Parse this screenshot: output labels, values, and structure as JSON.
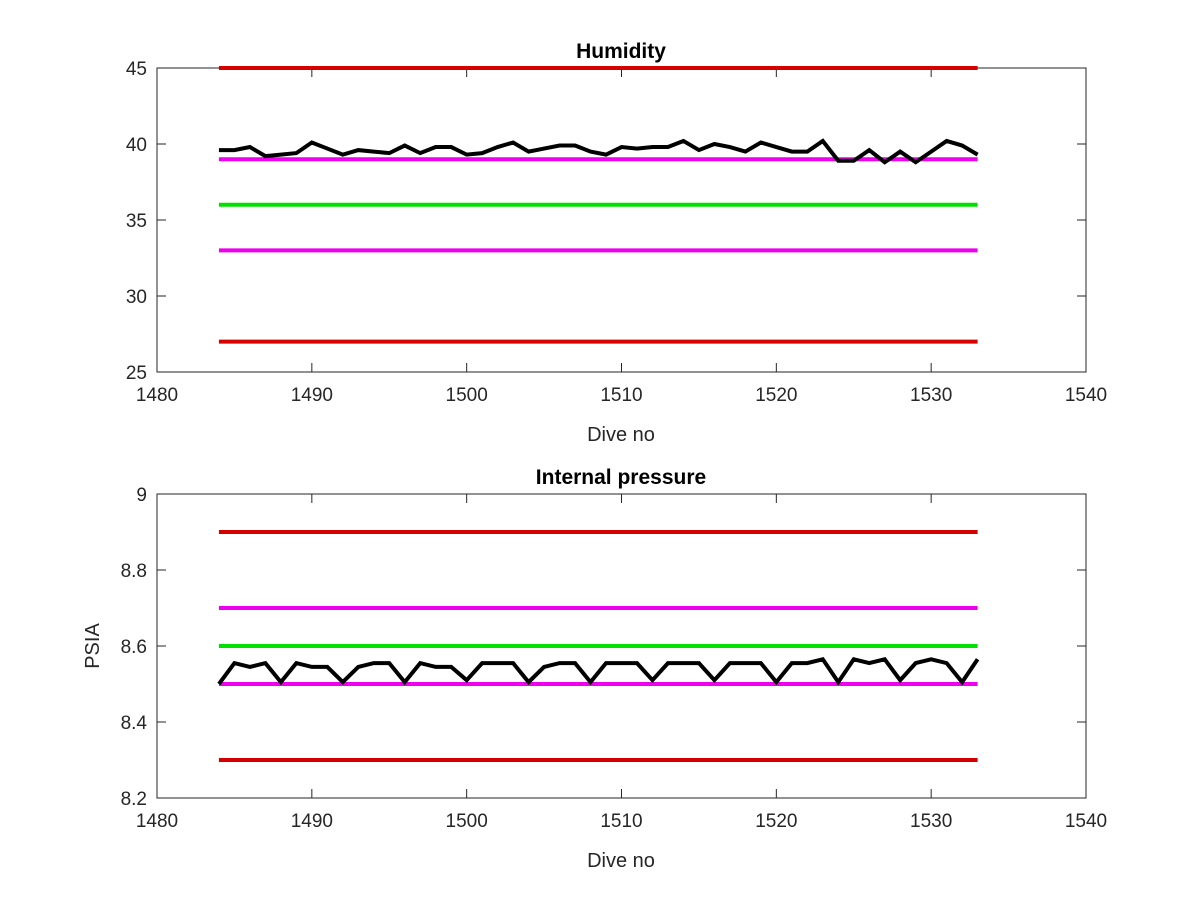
{
  "chart_data": [
    {
      "type": "line",
      "title": "Humidity",
      "xlabel": "Dive no",
      "ylabel": "",
      "xlim": [
        1480,
        1540
      ],
      "ylim": [
        25,
        45
      ],
      "xticks": [
        1480,
        1490,
        1500,
        1510,
        1520,
        1530,
        1540
      ],
      "yticks": [
        25,
        30,
        35,
        40,
        45
      ],
      "grid": false,
      "series": [
        {
          "color": "#d40000",
          "x": [
            1484,
            1533
          ],
          "values": [
            45,
            45
          ]
        },
        {
          "color": "#ee00ee",
          "x": [
            1484,
            1533
          ],
          "values": [
            39,
            39
          ]
        },
        {
          "color": "#00e000",
          "x": [
            1484,
            1533
          ],
          "values": [
            36,
            36
          ]
        },
        {
          "color": "#ee00ee",
          "x": [
            1484,
            1533
          ],
          "values": [
            33,
            33
          ]
        },
        {
          "color": "#d40000",
          "x": [
            1484,
            1533
          ],
          "values": [
            27,
            27
          ]
        },
        {
          "color": "#000000",
          "x": [
            1484,
            1485,
            1486,
            1487,
            1488,
            1489,
            1490,
            1491,
            1492,
            1493,
            1494,
            1495,
            1496,
            1497,
            1498,
            1499,
            1500,
            1501,
            1502,
            1503,
            1504,
            1505,
            1506,
            1507,
            1508,
            1509,
            1510,
            1511,
            1512,
            1513,
            1514,
            1515,
            1516,
            1517,
            1518,
            1519,
            1520,
            1521,
            1522,
            1523,
            1524,
            1525,
            1526,
            1527,
            1528,
            1529,
            1530,
            1531,
            1532,
            1533
          ],
          "values": [
            39.6,
            39.6,
            39.8,
            39.2,
            39.3,
            39.4,
            40.1,
            39.7,
            39.3,
            39.6,
            39.5,
            39.4,
            39.9,
            39.4,
            39.8,
            39.8,
            39.3,
            39.4,
            39.8,
            40.1,
            39.5,
            39.7,
            39.9,
            39.9,
            39.5,
            39.3,
            39.8,
            39.7,
            39.8,
            39.8,
            40.2,
            39.6,
            40.0,
            39.8,
            39.5,
            40.1,
            39.8,
            39.5,
            39.5,
            40.2,
            38.9,
            38.9,
            39.6,
            38.8,
            39.5,
            38.8,
            39.5,
            40.2,
            39.9,
            39.3
          ]
        }
      ]
    },
    {
      "type": "line",
      "title": "Internal pressure",
      "xlabel": "Dive no",
      "ylabel": "PSIA",
      "xlim": [
        1480,
        1540
      ],
      "ylim": [
        8.2,
        9
      ],
      "xticks": [
        1480,
        1490,
        1500,
        1510,
        1520,
        1530,
        1540
      ],
      "yticks": [
        8.2,
        8.4,
        8.6,
        8.8,
        9
      ],
      "grid": false,
      "series": [
        {
          "color": "#d40000",
          "x": [
            1484,
            1533
          ],
          "values": [
            8.9,
            8.9
          ]
        },
        {
          "color": "#ee00ee",
          "x": [
            1484,
            1533
          ],
          "values": [
            8.7,
            8.7
          ]
        },
        {
          "color": "#00e000",
          "x": [
            1484,
            1533
          ],
          "values": [
            8.6,
            8.6
          ]
        },
        {
          "color": "#ee00ee",
          "x": [
            1484,
            1533
          ],
          "values": [
            8.5,
            8.5
          ]
        },
        {
          "color": "#d40000",
          "x": [
            1484,
            1533
          ],
          "values": [
            8.3,
            8.3
          ]
        },
        {
          "color": "#000000",
          "x": [
            1484,
            1485,
            1486,
            1487,
            1488,
            1489,
            1490,
            1491,
            1492,
            1493,
            1494,
            1495,
            1496,
            1497,
            1498,
            1499,
            1500,
            1501,
            1502,
            1503,
            1504,
            1505,
            1506,
            1507,
            1508,
            1509,
            1510,
            1511,
            1512,
            1513,
            1514,
            1515,
            1516,
            1517,
            1518,
            1519,
            1520,
            1521,
            1522,
            1523,
            1524,
            1525,
            1526,
            1527,
            1528,
            1529,
            1530,
            1531,
            1532,
            1533
          ],
          "values": [
            8.5,
            8.555,
            8.545,
            8.555,
            8.505,
            8.555,
            8.545,
            8.545,
            8.505,
            8.545,
            8.555,
            8.555,
            8.505,
            8.555,
            8.545,
            8.545,
            8.51,
            8.555,
            8.555,
            8.555,
            8.505,
            8.545,
            8.555,
            8.555,
            8.505,
            8.555,
            8.555,
            8.555,
            8.51,
            8.555,
            8.555,
            8.555,
            8.51,
            8.555,
            8.555,
            8.555,
            8.505,
            8.555,
            8.555,
            8.565,
            8.505,
            8.565,
            8.555,
            8.565,
            8.51,
            8.555,
            8.565,
            8.555,
            8.505,
            8.565
          ]
        }
      ]
    }
  ]
}
